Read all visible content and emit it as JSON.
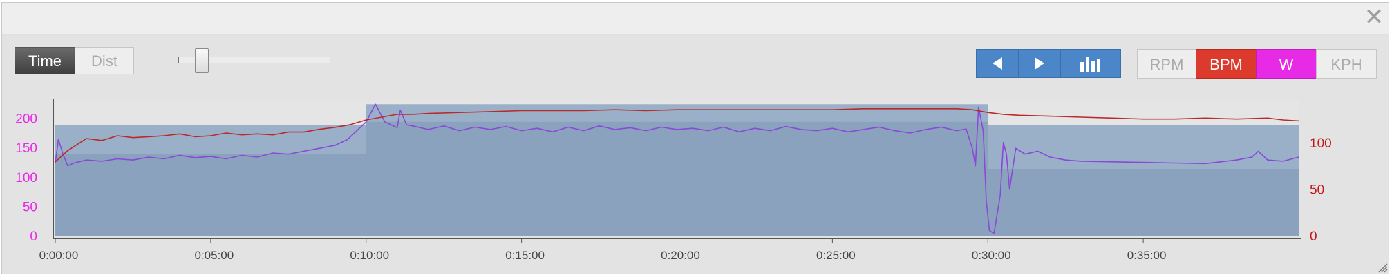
{
  "window": {
    "close_glyph": "✕"
  },
  "toolbar": {
    "mode_time": "Time",
    "mode_dist": "Dist",
    "zoom_slider_level": 0.12,
    "metric_rpm": "RPM",
    "metric_bpm": "BPM",
    "metric_w": "W",
    "metric_kph": "KPH",
    "colors": {
      "active_mode": "#4a4a4a",
      "nav": "#4a86c8",
      "bpm": "#dd3a2e",
      "w": "#e62ae6"
    },
    "icons": [
      "prev-triangle-icon",
      "next-triangle-icon",
      "bar-chart-icon"
    ]
  },
  "chart_data": {
    "type": "line",
    "x_unit": "elapsed time (h:mm:ss)",
    "x_ticks": [
      "0:00:00",
      "0:05:00",
      "0:10:00",
      "0:15:00",
      "0:20:00",
      "0:25:00",
      "0:30:00",
      "0:35:00"
    ],
    "x_range_minutes": [
      0,
      40
    ],
    "left_axis": {
      "ticks": [
        "0",
        "50",
        "100",
        "150",
        "200"
      ],
      "range": [
        0,
        230
      ],
      "color": "#e62ae6"
    },
    "right_axis": {
      "ticks": [
        "0",
        "50",
        "100"
      ],
      "range": [
        0,
        145
      ],
      "color": "#c01818"
    },
    "grid": false,
    "interval_blocks": [
      {
        "start_min": 0,
        "end_min": 10,
        "target_low": 140,
        "target_high": 190
      },
      {
        "start_min": 10,
        "end_min": 30,
        "target_low": 195,
        "target_high": 225
      },
      {
        "start_min": 30,
        "end_min": 40,
        "target_low": 115,
        "target_high": 190
      }
    ],
    "series": [
      {
        "axis": "left",
        "color": "#8a48d8",
        "values": [
          [
            0,
            125
          ],
          [
            0.1,
            165
          ],
          [
            0.25,
            140
          ],
          [
            0.4,
            120
          ],
          [
            0.6,
            125
          ],
          [
            1,
            130
          ],
          [
            1.5,
            128
          ],
          [
            2,
            132
          ],
          [
            2.5,
            130
          ],
          [
            3,
            135
          ],
          [
            3.5,
            132
          ],
          [
            4,
            138
          ],
          [
            4.5,
            134
          ],
          [
            5,
            136
          ],
          [
            5.5,
            132
          ],
          [
            6,
            138
          ],
          [
            6.5,
            135
          ],
          [
            7,
            142
          ],
          [
            7.5,
            140
          ],
          [
            8,
            145
          ],
          [
            8.5,
            150
          ],
          [
            9,
            155
          ],
          [
            9.4,
            165
          ],
          [
            9.8,
            185
          ],
          [
            10,
            195
          ],
          [
            10.3,
            225
          ],
          [
            10.6,
            195
          ],
          [
            11,
            185
          ],
          [
            11.1,
            215
          ],
          [
            11.3,
            190
          ],
          [
            11.5,
            188
          ],
          [
            12,
            182
          ],
          [
            12.5,
            188
          ],
          [
            13,
            180
          ],
          [
            13.5,
            186
          ],
          [
            14,
            182
          ],
          [
            14.5,
            187
          ],
          [
            15,
            180
          ],
          [
            15.5,
            184
          ],
          [
            16,
            178
          ],
          [
            16.5,
            186
          ],
          [
            17,
            180
          ],
          [
            17.5,
            188
          ],
          [
            18,
            182
          ],
          [
            18.5,
            185
          ],
          [
            19,
            180
          ],
          [
            19.5,
            186
          ],
          [
            20,
            182
          ],
          [
            20.5,
            184
          ],
          [
            21,
            180
          ],
          [
            21.5,
            186
          ],
          [
            22,
            178
          ],
          [
            22.5,
            184
          ],
          [
            23,
            180
          ],
          [
            23.5,
            187
          ],
          [
            24,
            182
          ],
          [
            24.5,
            180
          ],
          [
            25,
            184
          ],
          [
            25.5,
            178
          ],
          [
            26,
            182
          ],
          [
            26.5,
            186
          ],
          [
            27,
            180
          ],
          [
            27.5,
            176
          ],
          [
            28,
            182
          ],
          [
            28.5,
            186
          ],
          [
            29,
            180
          ],
          [
            29.3,
            183
          ],
          [
            29.5,
            150
          ],
          [
            29.6,
            120
          ],
          [
            29.7,
            220
          ],
          [
            29.85,
            180
          ],
          [
            29.95,
            60
          ],
          [
            30.05,
            10
          ],
          [
            30.2,
            5
          ],
          [
            30.4,
            70
          ],
          [
            30.5,
            160
          ],
          [
            30.6,
            140
          ],
          [
            30.7,
            80
          ],
          [
            30.9,
            150
          ],
          [
            31.2,
            140
          ],
          [
            31.6,
            145
          ],
          [
            32,
            135
          ],
          [
            32.5,
            130
          ],
          [
            33,
            128
          ],
          [
            34,
            127
          ],
          [
            35,
            126
          ],
          [
            36,
            125
          ],
          [
            37,
            124
          ],
          [
            38,
            130
          ],
          [
            38.5,
            135
          ],
          [
            38.7,
            145
          ],
          [
            39,
            130
          ],
          [
            39.5,
            128
          ],
          [
            40,
            135
          ]
        ]
      },
      {
        "axis": "right",
        "color": "#b92a2a",
        "values": [
          [
            0,
            80
          ],
          [
            0.4,
            92
          ],
          [
            1,
            105
          ],
          [
            1.5,
            103
          ],
          [
            2,
            108
          ],
          [
            2.5,
            106
          ],
          [
            3,
            107
          ],
          [
            3.5,
            108
          ],
          [
            4,
            110
          ],
          [
            4.5,
            107
          ],
          [
            5,
            108
          ],
          [
            5.5,
            111
          ],
          [
            6,
            109
          ],
          [
            6.5,
            110
          ],
          [
            7,
            109
          ],
          [
            7.5,
            112
          ],
          [
            8,
            112
          ],
          [
            8.5,
            115
          ],
          [
            9,
            117
          ],
          [
            9.5,
            120
          ],
          [
            10,
            125
          ],
          [
            10.5,
            128
          ],
          [
            11,
            131
          ],
          [
            11.5,
            131
          ],
          [
            12,
            132
          ],
          [
            13,
            133
          ],
          [
            14,
            134
          ],
          [
            15,
            135
          ],
          [
            16,
            135
          ],
          [
            17,
            135
          ],
          [
            18,
            136
          ],
          [
            19,
            135
          ],
          [
            20,
            136
          ],
          [
            21,
            136
          ],
          [
            22,
            136
          ],
          [
            23,
            136
          ],
          [
            24,
            136
          ],
          [
            25,
            136
          ],
          [
            26,
            137
          ],
          [
            27,
            137
          ],
          [
            28,
            137
          ],
          [
            29,
            137
          ],
          [
            29.5,
            136
          ],
          [
            30,
            133
          ],
          [
            30.5,
            131
          ],
          [
            31,
            130
          ],
          [
            32,
            129
          ],
          [
            33,
            128
          ],
          [
            34,
            127
          ],
          [
            35,
            126
          ],
          [
            36,
            126
          ],
          [
            37,
            127
          ],
          [
            38,
            126
          ],
          [
            39,
            127
          ],
          [
            39.5,
            125
          ],
          [
            40,
            124
          ]
        ]
      }
    ]
  }
}
